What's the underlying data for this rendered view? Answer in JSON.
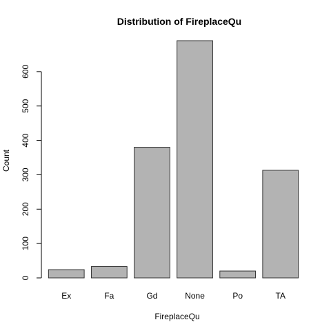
{
  "chart_data": {
    "type": "bar",
    "title": "Distribution of FireplaceQu",
    "xlabel": "FireplaceQu",
    "ylabel": "Count",
    "categories": [
      "Ex",
      "Fa",
      "Gd",
      "None",
      "Po",
      "TA"
    ],
    "values": [
      24,
      33,
      380,
      690,
      20,
      313
    ],
    "ylim": [
      0,
      690
    ],
    "yticks": [
      0,
      100,
      200,
      300,
      400,
      500,
      600
    ],
    "ytick_labels": [
      "0",
      "100",
      "200",
      "300",
      "400",
      "500",
      "600"
    ],
    "grid": false,
    "bar_color": "#b3b3b3",
    "bar_edge_color": "#333333"
  }
}
